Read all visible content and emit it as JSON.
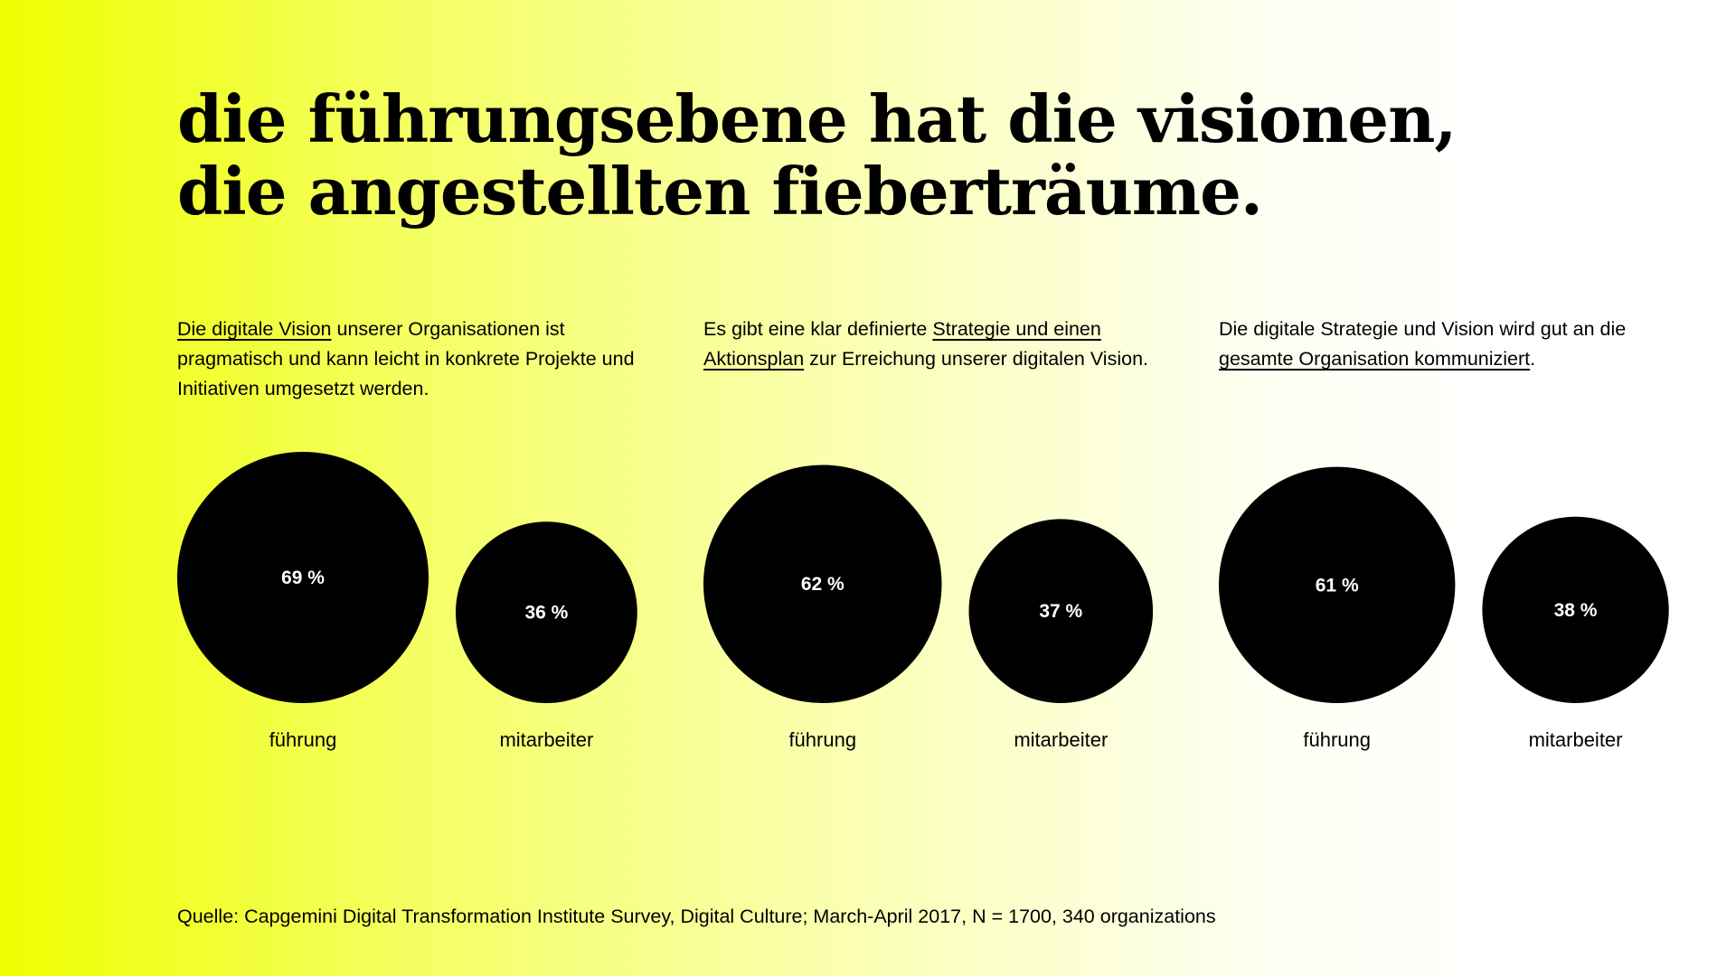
{
  "headline": {
    "line1": "die führungsebene hat die visionen,",
    "line2": "die angestellten fieberträume."
  },
  "source": "Quelle: Capgemini Digital Transformation Institute Survey, Digital Culture; March-April 2017, N = 1700, 340 organizations",
  "colors": {
    "bubble": "#000000",
    "bubble_text": "#ffffff",
    "accent": "#eeff00"
  },
  "chart_data": [
    {
      "type": "bubble",
      "description_parts": [
        {
          "text": "Die digitale Vision",
          "underline": true
        },
        {
          "text": " unserer Organisationen ist pragmatisch und kann leicht in konkrete Projekte und Initiativen umgesetzt werden.",
          "underline": false
        }
      ],
      "categories": [
        "führung",
        "mitarbeiter"
      ],
      "values": [
        69,
        36
      ],
      "value_labels": [
        "69 %",
        "36 %"
      ],
      "unit": "%"
    },
    {
      "type": "bubble",
      "description_parts": [
        {
          "text": "Es gibt eine klar definierte ",
          "underline": false
        },
        {
          "text": "Strategie und einen Aktionsplan",
          "underline": true
        },
        {
          "text": " zur Erreichung unserer digitalen Vision.",
          "underline": false
        }
      ],
      "categories": [
        "führung",
        "mitarbeiter"
      ],
      "values": [
        62,
        37
      ],
      "value_labels": [
        "62 %",
        "37 %"
      ],
      "unit": "%"
    },
    {
      "type": "bubble",
      "description_parts": [
        {
          "text": "Die digitale Strategie und Vision wird gut an die ",
          "underline": false
        },
        {
          "text": "gesamte Organisation kommuniziert",
          "underline": true
        },
        {
          "text": ".",
          "underline": false
        }
      ],
      "categories": [
        "führung",
        "mitarbeiter"
      ],
      "values": [
        61,
        38
      ],
      "value_labels": [
        "61 %",
        "38 %"
      ],
      "unit": "%"
    }
  ]
}
